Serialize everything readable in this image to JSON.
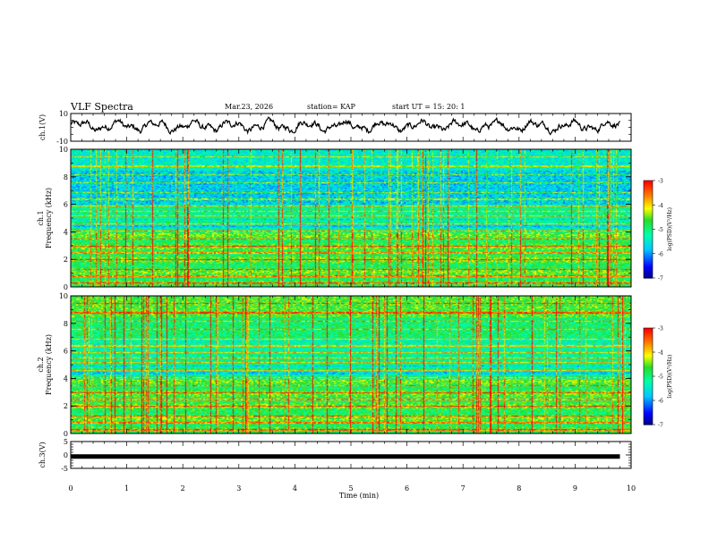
{
  "header": {
    "title": "VLF Spectra",
    "date": "Mar.23, 2026",
    "station": "station= KAP",
    "start": "start  UT =   15: 20: 1"
  },
  "chart_data": [
    {
      "type": "line",
      "panel": "ch1-waveform",
      "title": "",
      "ylabel": "ch.1(V)",
      "ylim": [
        -10,
        10
      ],
      "yticks": [
        "10",
        "-10"
      ],
      "xlim": [
        0,
        10
      ],
      "series": [
        {
          "name": "ch.1 voltage",
          "description_values": "oscillating signal roughly between -4 and 6 V"
        }
      ]
    },
    {
      "type": "heatmap",
      "panel": "ch1-spectrogram",
      "ylabel": "ch.1\nFrequency (kHz)",
      "ylabel_lines": [
        "ch.1",
        "Frequency (kHz)"
      ],
      "ylim": [
        0,
        10
      ],
      "yticks": [
        "0",
        "2",
        "4",
        "6",
        "8",
        "10"
      ],
      "xlim": [
        0,
        10
      ],
      "colorbar": {
        "label": "log(PSD)(V²/Hz)",
        "range": [
          -7,
          -3
        ],
        "ticks": [
          "-3",
          "-4",
          "-5",
          "-6",
          "-7"
        ]
      }
    },
    {
      "type": "heatmap",
      "panel": "ch2-spectrogram",
      "ylabel_lines": [
        "ch.2",
        "Frequency (kHz)"
      ],
      "ylim": [
        0,
        10
      ],
      "yticks": [
        "0",
        "2",
        "4",
        "6",
        "8",
        "10"
      ],
      "xlim": [
        0,
        10
      ],
      "colorbar": {
        "label": "log(PSD)(V²/Hz)",
        "range": [
          -7,
          -3
        ],
        "ticks": [
          "-3",
          "-4",
          "-5",
          "-6",
          "-7"
        ]
      }
    },
    {
      "type": "line",
      "panel": "ch3-waveform",
      "ylabel": "ch.3(V)",
      "ylim": [
        -5,
        5
      ],
      "yticks": [
        "5",
        "0",
        "-5"
      ],
      "xlim": [
        0,
        10
      ],
      "series": [
        {
          "name": "ch.3 voltage",
          "level": -0.6
        }
      ]
    }
  ],
  "xaxis": {
    "label": "Time  (min)",
    "ticks": [
      "0",
      "1",
      "2",
      "3",
      "4",
      "5",
      "6",
      "7",
      "8",
      "9",
      "10"
    ]
  },
  "colors": {
    "scale": [
      "#000080",
      "#0000ff",
      "#00c8ff",
      "#00ffb0",
      "#20e020",
      "#ffff00",
      "#ff8000",
      "#ff0000",
      "#ffffff"
    ]
  }
}
